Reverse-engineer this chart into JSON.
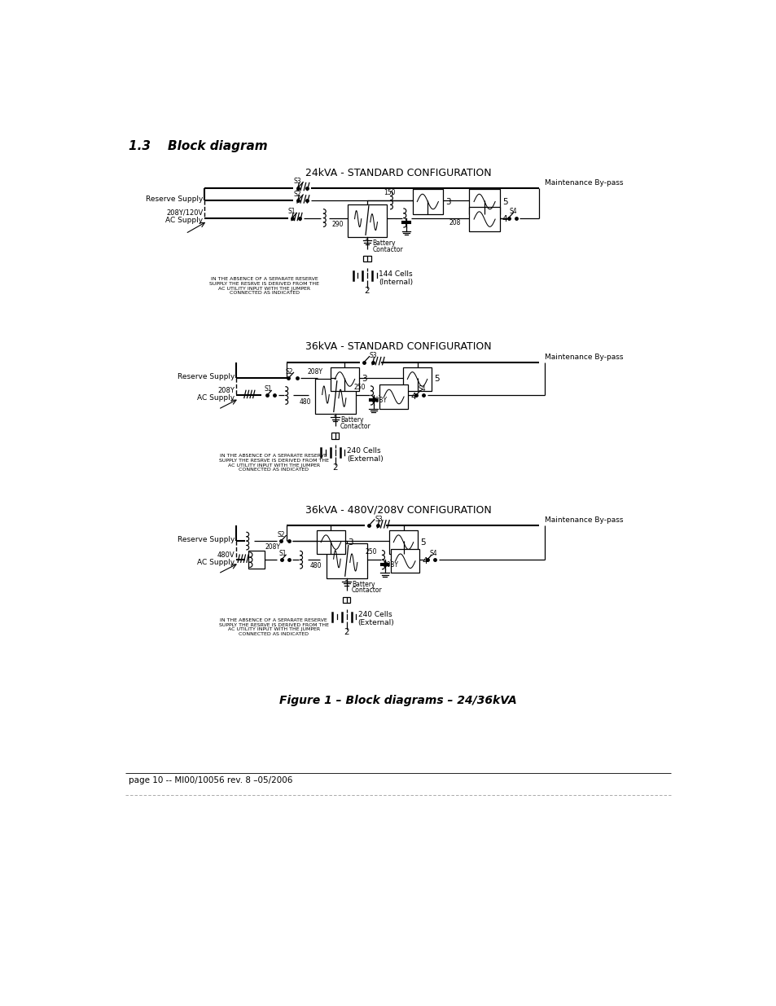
{
  "title_section": "1.3    Block diagram",
  "figure_caption": "Figure 1 – Block diagrams – 24/36kVA",
  "footer_text": "page 10 -- MI00/10056 rev. 8 –05/2006",
  "diagram1_title": "24kVA - STANDARD CONFIGURATION",
  "diagram2_title": "36kVA - STANDARD CONFIGURATION",
  "diagram3_title": "36kVA - 480V/208V CONFIGURATION",
  "note_text": "IN THE ABSENCE OF A SEPARATE RESERVE\nSUPPLY THE RESRVE IS DERIVED FROM THE\nAC UTILITY INPUT WITH THE JUMPER\nCONNECTED AS INDICATED",
  "bg_color": "#ffffff",
  "line_color": "#000000"
}
